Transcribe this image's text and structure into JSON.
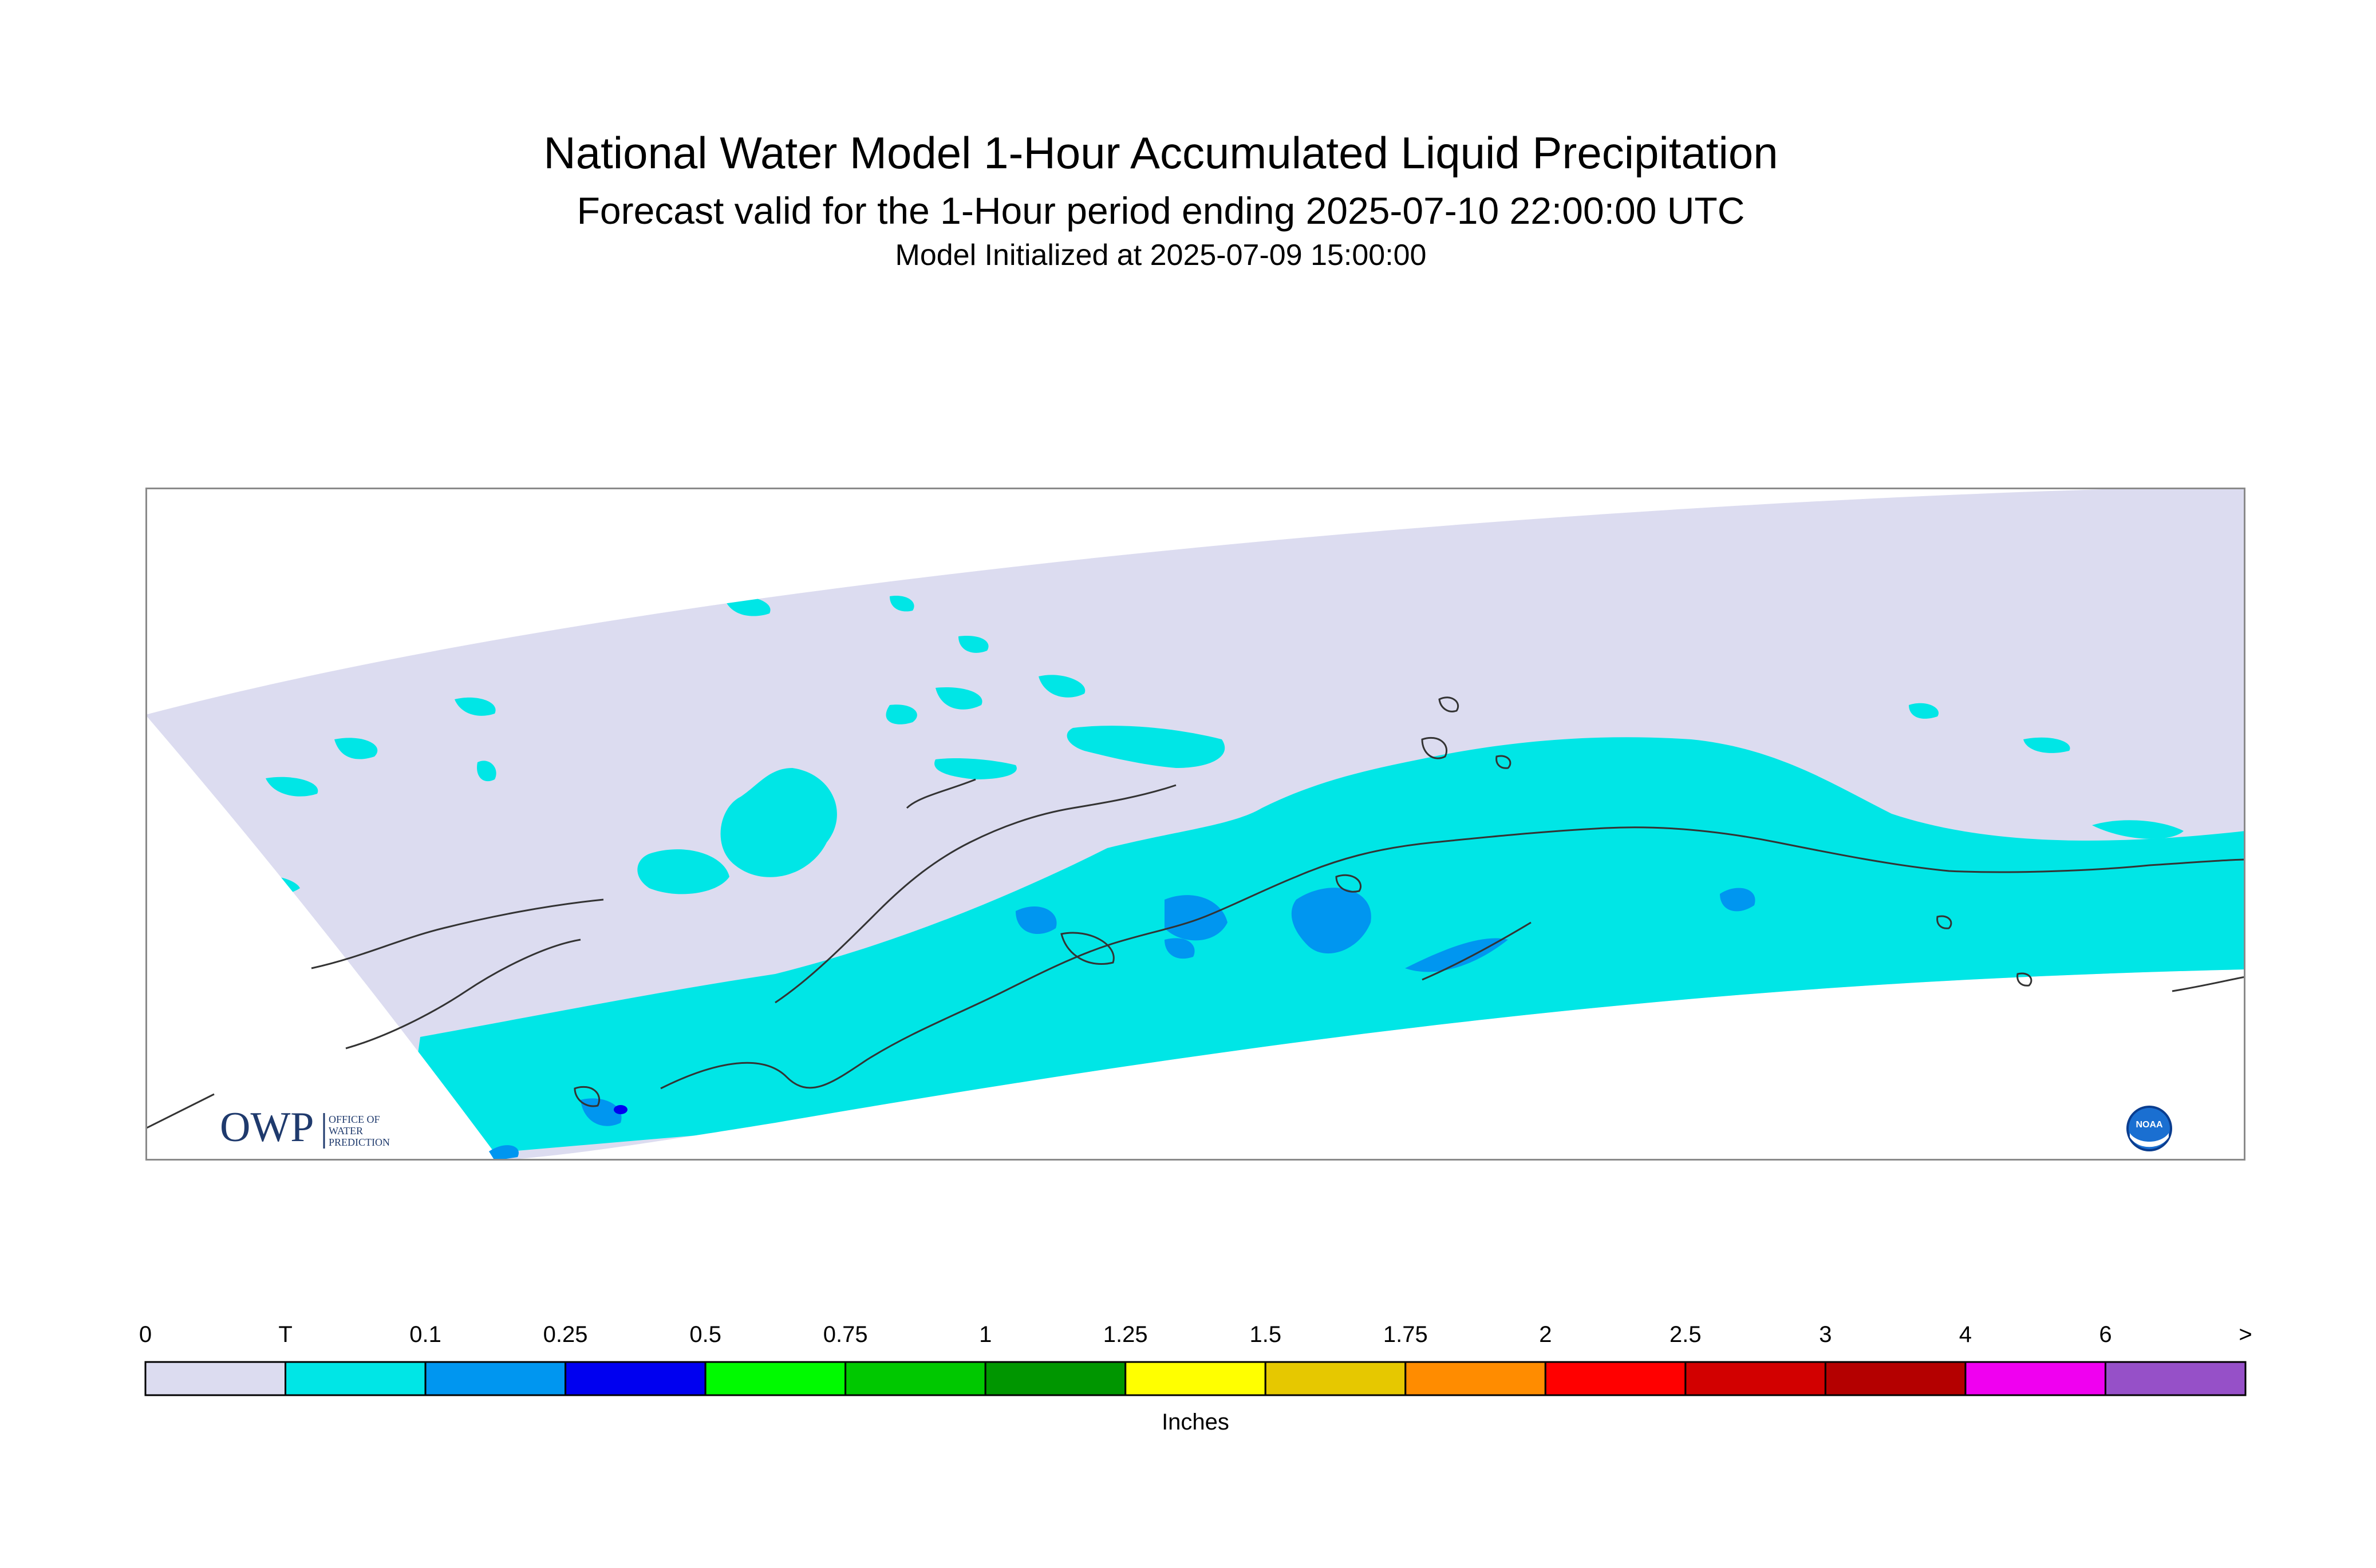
{
  "title": {
    "line1": "National Water Model 1-Hour Accumulated Liquid Precipitation",
    "line2": "Forecast valid for the 1-Hour period ending 2025-07-10 22:00:00 UTC",
    "line3": "Model Initialized at 2025-07-09 15:00:00"
  },
  "map": {
    "region_icon": "alaska-coastline",
    "logos": {
      "owp": {
        "mark": "OWP",
        "text_lines": [
          "OFFICE OF",
          "WATER",
          "PREDICTION"
        ]
      },
      "noaa": {
        "text": "NOAA",
        "icon": "noaa-logo-icon"
      }
    },
    "colors": {
      "background": "#ffffff",
      "outline": "#8a8a8a",
      "coast": "#333333"
    }
  },
  "legend": {
    "unit_label": "Inches",
    "bins": [
      {
        "label": "0",
        "color": "#dcdcf0"
      },
      {
        "label": "T",
        "color": "#00e6e6"
      },
      {
        "label": "0.1",
        "color": "#0096f0"
      },
      {
        "label": "0.25",
        "color": "#0000f0"
      },
      {
        "label": "0.5",
        "color": "#00fa00"
      },
      {
        "label": "0.75",
        "color": "#00c800"
      },
      {
        "label": "1",
        "color": "#009600"
      },
      {
        "label": "1.25",
        "color": "#ffff00"
      },
      {
        "label": "1.5",
        "color": "#e6c800"
      },
      {
        "label": "1.75",
        "color": "#ff8c00"
      },
      {
        "label": "2",
        "color": "#ff0000"
      },
      {
        "label": "2.5",
        "color": "#d20000"
      },
      {
        "label": "3",
        "color": "#b40000"
      },
      {
        "label": "4",
        "color": "#f000f0"
      },
      {
        "label": "6",
        "color": "#9650c8"
      }
    ],
    "end_label": ">"
  }
}
